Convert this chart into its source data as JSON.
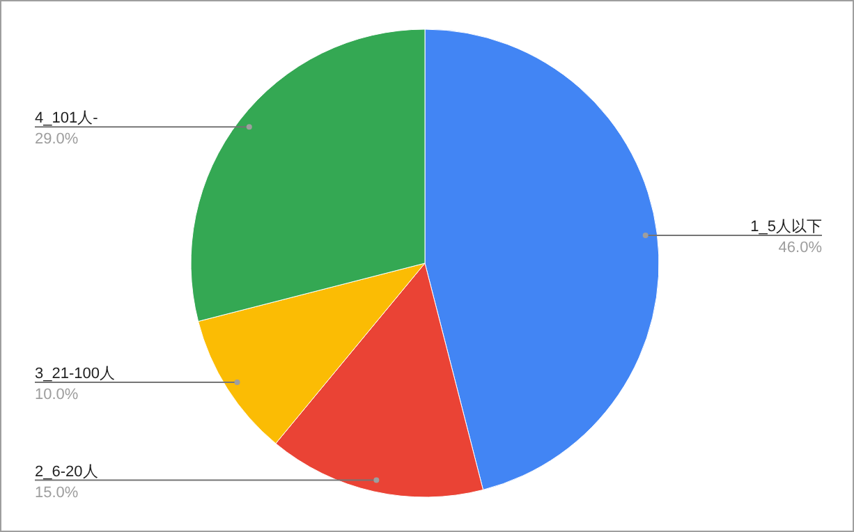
{
  "chart_data": {
    "type": "pie",
    "categories": [
      "1_5人以下",
      "2_6-20人",
      "3_21-100人",
      "4_101人-"
    ],
    "values": [
      46,
      15,
      10,
      29
    ],
    "value_labels": [
      "46.0%",
      "15.0%",
      "10.0%",
      "29.0%"
    ],
    "colors": [
      "#4285f4",
      "#ea4335",
      "#fbbc04",
      "#34a853"
    ]
  }
}
